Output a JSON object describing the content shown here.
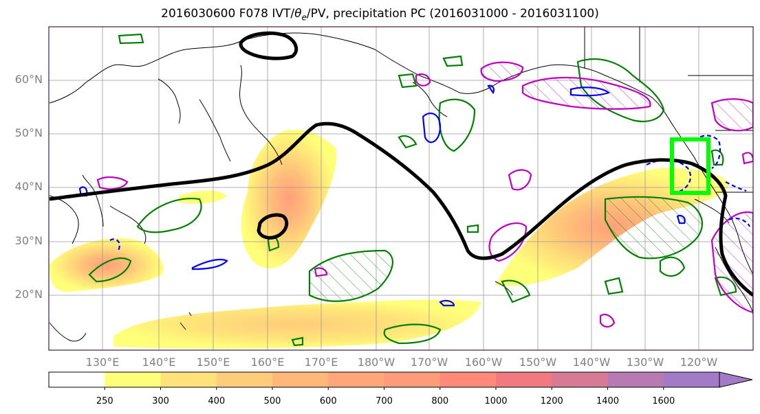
{
  "title": {
    "prefix": "2016030600 F078 IVT/",
    "theta_symbol": "θ",
    "theta_sub": "e",
    "suffix": "/PV, precipitation PC (2016031000 - 2016031100)"
  },
  "lat_labels": [
    "60°N",
    "50°N",
    "40°N",
    "30°N",
    "20°N"
  ],
  "lon_labels": [
    "130°E",
    "140°E",
    "150°E",
    "160°E",
    "170°E",
    "180°W",
    "170°W",
    "160°W",
    "150°W",
    "140°W",
    "130°W",
    "120°W"
  ],
  "colorbar": {
    "ticks": [
      "250",
      "300",
      "400",
      "500",
      "600",
      "700",
      "800",
      "1000",
      "1200",
      "1400",
      "1600"
    ],
    "colors": [
      "#ffffff",
      "#ffff7a",
      "#ffe27a",
      "#ffcc7a",
      "#ffb87a",
      "#ffa67a",
      "#ff9a7a",
      "#ff8a7a",
      "#f07a80",
      "#d77a95",
      "#b87ab3",
      "#a37ac5"
    ]
  },
  "colors": {
    "ivt_contour": "#000000",
    "theta_e": "#0000ff",
    "pv": "#008000",
    "precip": "#c000c0",
    "highlight_box": "#00ff00",
    "grid": "#999999",
    "coast": "#000000"
  }
}
